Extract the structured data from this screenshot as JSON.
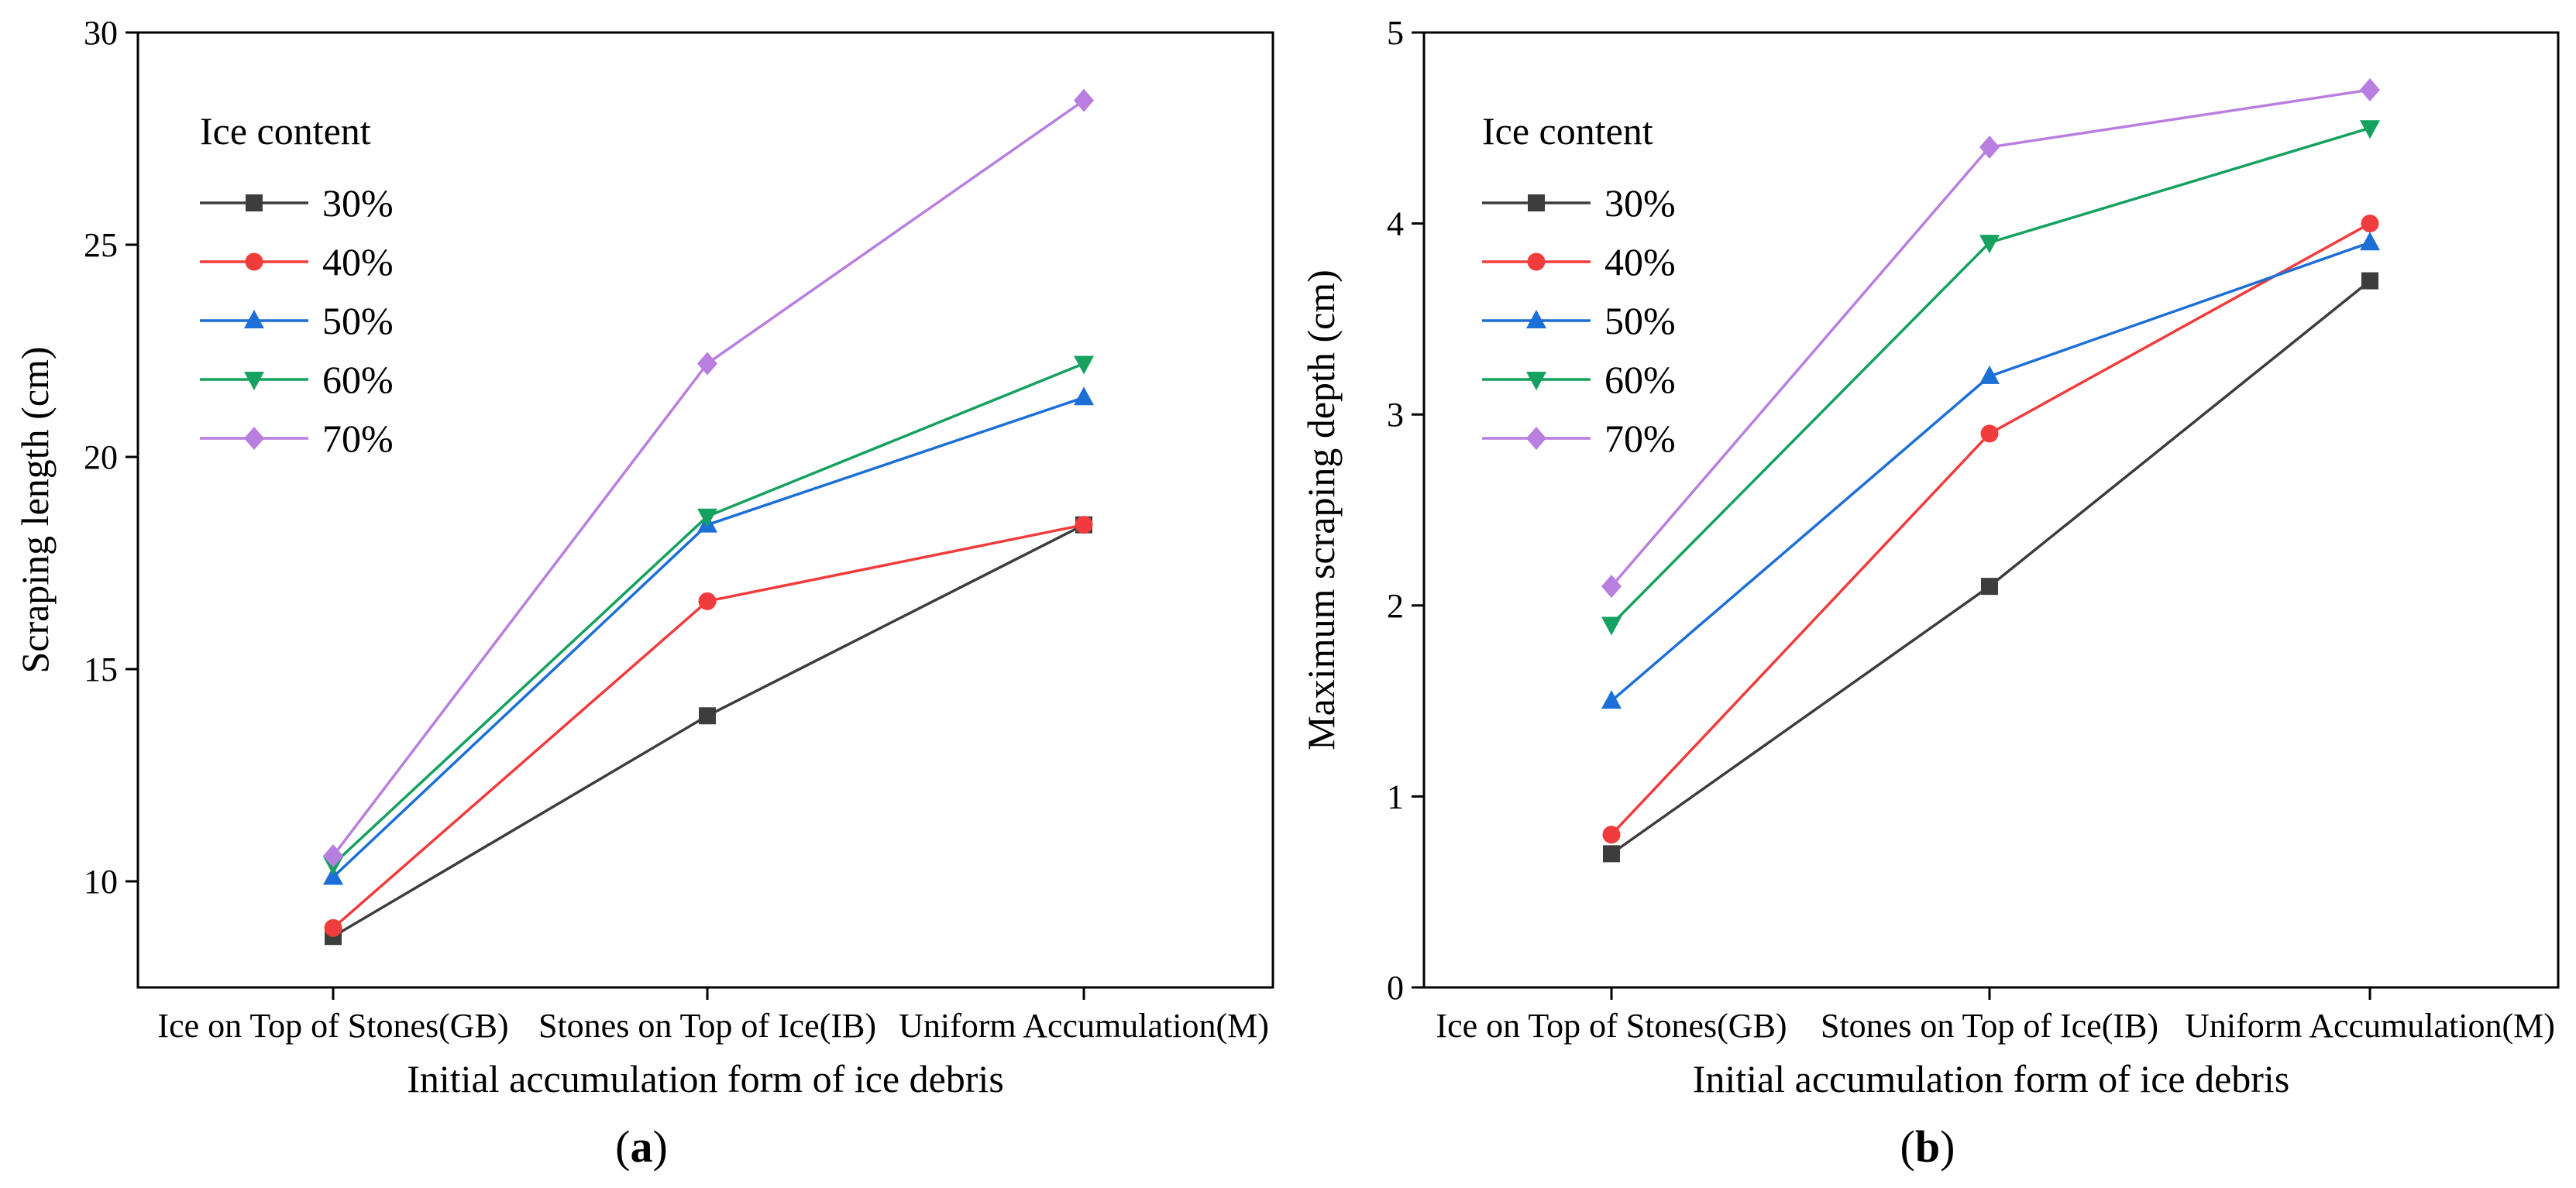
{
  "figure": {
    "panels": [
      {
        "label_prefix": "(",
        "label_letter": "a",
        "label_suffix": ")"
      },
      {
        "label_prefix": "(",
        "label_letter": "b",
        "label_suffix": ")"
      }
    ]
  },
  "chart_data": [
    {
      "type": "line",
      "title": "",
      "xlabel": "Initial accumulation form of ice debris",
      "ylabel": "Scraping length (cm)",
      "categories": [
        "Ice on Top of Stones(GB)",
        "Stones on Top of Ice(IB)",
        "Uniform Accumulation(M)"
      ],
      "ylim": [
        7.5,
        30
      ],
      "yticks": [
        10,
        15,
        20,
        25,
        30
      ],
      "grid": false,
      "legend_title": "Ice content",
      "legend_position": "top-left",
      "series": [
        {
          "name": "30%",
          "marker": "square",
          "color": "#3d3d3d",
          "values": [
            8.7,
            13.9,
            18.4
          ]
        },
        {
          "name": "40%",
          "marker": "circle",
          "color": "#f03c3c",
          "values": [
            8.9,
            16.6,
            18.4
          ]
        },
        {
          "name": "50%",
          "marker": "triangle-up",
          "color": "#1c6fd6",
          "values": [
            10.1,
            18.4,
            21.4
          ]
        },
        {
          "name": "60%",
          "marker": "triangle-down",
          "color": "#15a15f",
          "values": [
            10.4,
            18.6,
            22.2
          ]
        },
        {
          "name": "70%",
          "marker": "diamond",
          "color": "#b97fe0",
          "values": [
            10.6,
            22.2,
            28.4
          ]
        }
      ]
    },
    {
      "type": "line",
      "title": "",
      "xlabel": "Initial accumulation form of ice debris",
      "ylabel": "Maximum scraping depth (cm)",
      "categories": [
        "Ice on Top of Stones(GB)",
        "Stones on Top of Ice(IB)",
        "Uniform Accumulation(M)"
      ],
      "ylim": [
        0,
        5
      ],
      "yticks": [
        0,
        1,
        2,
        3,
        4,
        5
      ],
      "grid": false,
      "legend_title": "Ice content",
      "legend_position": "top-left",
      "series": [
        {
          "name": "30%",
          "marker": "square",
          "color": "#3d3d3d",
          "values": [
            0.7,
            2.1,
            3.7
          ]
        },
        {
          "name": "40%",
          "marker": "circle",
          "color": "#f03c3c",
          "values": [
            0.8,
            2.9,
            4.0
          ]
        },
        {
          "name": "50%",
          "marker": "triangle-up",
          "color": "#1c6fd6",
          "values": [
            1.5,
            3.2,
            3.9
          ]
        },
        {
          "name": "60%",
          "marker": "triangle-down",
          "color": "#15a15f",
          "values": [
            1.9,
            3.9,
            4.5
          ]
        },
        {
          "name": "70%",
          "marker": "diamond",
          "color": "#b97fe0",
          "values": [
            2.1,
            4.4,
            4.7
          ]
        }
      ]
    }
  ]
}
